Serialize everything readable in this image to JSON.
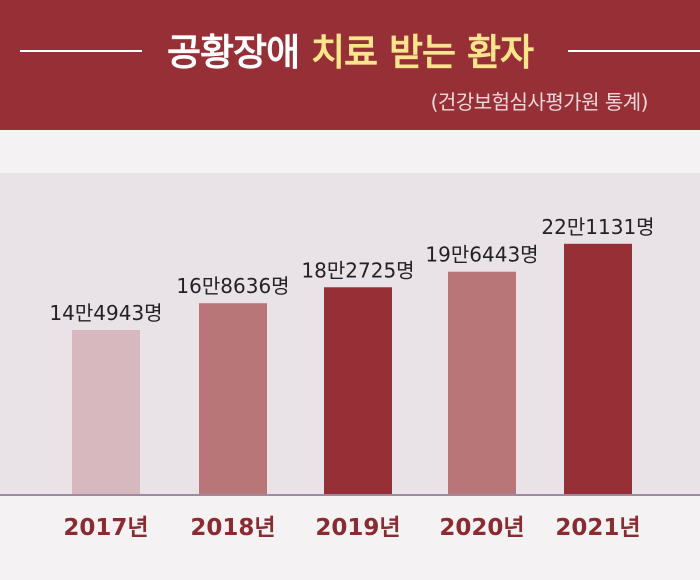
{
  "header": {
    "title_part1": "공황장애",
    "title_part2": "치료 받는 환자",
    "subtitle": "(건강보험심사평가원 통계)"
  },
  "colors": {
    "header_bg": "#973036",
    "title_highlight": "#fbe58c",
    "bar_2017": "#d7b8be",
    "bar_2018": "#b97679",
    "bar_2019": "#973036",
    "bar_2020": "#b97679",
    "bar_2021": "#973036"
  },
  "chart_data": {
    "type": "bar",
    "categories": [
      "2017년",
      "2018년",
      "2019년",
      "2020년",
      "2021년"
    ],
    "values": [
      144943,
      168636,
      182725,
      196443,
      221131
    ],
    "value_labels": [
      "14만4943명",
      "16만8636명",
      "18만2725명",
      "19만6443명",
      "22만1131명"
    ],
    "bar_colors": [
      "#d7b8be",
      "#b97679",
      "#973036",
      "#b97679",
      "#973036"
    ],
    "grid": false
  }
}
